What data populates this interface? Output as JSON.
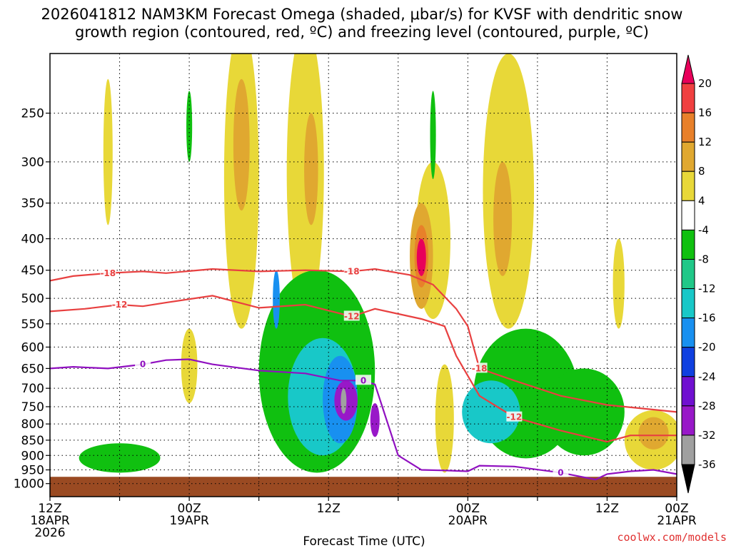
{
  "chart_data": {
    "type": "contour-timeheight",
    "title_line1": "2026041812 NAM3KM Forecast Omega (shaded, μbar/s) for KVSF with dendritic snow",
    "title_line2": "growth region (contoured, red, ºC) and freezing level (contoured, purple, ºC)",
    "xlabel": "Forecast Time (UTC)",
    "x_range_hours": [
      0,
      54
    ],
    "x_ticks": [
      {
        "hour": 0,
        "lines": [
          "12Z",
          "18APR",
          "2026"
        ]
      },
      {
        "hour": 6,
        "lines": []
      },
      {
        "hour": 12,
        "lines": [
          "00Z",
          "19APR"
        ]
      },
      {
        "hour": 18,
        "lines": []
      },
      {
        "hour": 24,
        "lines": [
          "12Z"
        ]
      },
      {
        "hour": 30,
        "lines": []
      },
      {
        "hour": 36,
        "lines": [
          "00Z",
          "20APR"
        ]
      },
      {
        "hour": 42,
        "lines": []
      },
      {
        "hour": 48,
        "lines": [
          "12Z"
        ]
      },
      {
        "hour": 54,
        "lines": [
          "00Z",
          "21APR"
        ]
      }
    ],
    "y_range_hpa": [
      1050,
      200
    ],
    "y_ticks": [
      250,
      300,
      350,
      400,
      450,
      500,
      550,
      600,
      650,
      700,
      750,
      800,
      850,
      900,
      950,
      1000
    ],
    "colorbar_levels": [
      "20",
      "16",
      "12",
      "8",
      "4",
      "-4",
      "-8",
      "-12",
      "-16",
      "-20",
      "-24",
      "-28",
      "-32",
      "-36"
    ],
    "colorbar_colors": [
      "#e8005a",
      "#f04040",
      "#e8802a",
      "#e0a830",
      "#e8d838",
      "#ffffff",
      "#10c010",
      "#20c888",
      "#18c8c8",
      "#1890f0",
      "#1040e0",
      "#7010d0",
      "#9818c8",
      "#a0a0a0",
      "#000000"
    ],
    "omega_regions": [
      {
        "level": 4,
        "hour": 5.0,
        "pressure": [
          220,
          380
        ],
        "width_h": 0.8
      },
      {
        "level": 4,
        "hour": 16.5,
        "pressure": [
          180,
          560
        ],
        "width_h": 3.0
      },
      {
        "level": 8,
        "hour": 16.5,
        "pressure": [
          220,
          360
        ],
        "width_h": 1.4
      },
      {
        "level": 4,
        "hour": 22.0,
        "pressure": [
          180,
          540
        ],
        "width_h": 3.2
      },
      {
        "level": 8,
        "hour": 22.5,
        "pressure": [
          250,
          380
        ],
        "width_h": 1.2
      },
      {
        "level": 4,
        "hour": 33.0,
        "pressure": [
          300,
          540
        ],
        "width_h": 3.0
      },
      {
        "level": 8,
        "hour": 32.0,
        "pressure": [
          350,
          520
        ],
        "width_h": 2.0
      },
      {
        "level": 12,
        "hour": 32.0,
        "pressure": [
          380,
          480
        ],
        "width_h": 1.2
      },
      {
        "level": 20,
        "hour": 32.0,
        "pressure": [
          400,
          460
        ],
        "width_h": 0.8
      },
      {
        "level": 4,
        "hour": 39.5,
        "pressure": [
          200,
          560
        ],
        "width_h": 4.4
      },
      {
        "level": 8,
        "hour": 39.0,
        "pressure": [
          300,
          460
        ],
        "width_h": 1.6
      },
      {
        "level": 4,
        "hour": 49.0,
        "pressure": [
          400,
          560
        ],
        "width_h": 1.0
      },
      {
        "level": 4,
        "hour": 52.0,
        "pressure": [
          760,
          950
        ],
        "width_h": 5.0
      },
      {
        "level": 8,
        "hour": 52.0,
        "pressure": [
          780,
          880
        ],
        "width_h": 2.6
      },
      {
        "level": 4,
        "hour": 12.0,
        "pressure": [
          560,
          740
        ],
        "width_h": 1.4
      },
      {
        "level": 20,
        "hour": 34.0,
        "pressure": [
          660,
          950
        ],
        "width_h": 0.9
      },
      {
        "level": 4,
        "hour": 34.0,
        "pressure": [
          640,
          960
        ],
        "width_h": 1.6
      },
      {
        "level": -4,
        "hour": 12.0,
        "pressure": [
          230,
          300
        ],
        "width_h": 0.5
      },
      {
        "level": -4,
        "hour": 33.0,
        "pressure": [
          230,
          320
        ],
        "width_h": 0.5
      },
      {
        "level": -4,
        "hour": 23.0,
        "pressure": [
          450,
          960
        ],
        "width_h": 10.0
      },
      {
        "level": -4,
        "hour": 41.0,
        "pressure": [
          560,
          910
        ],
        "width_h": 9.0
      },
      {
        "level": -4,
        "hour": 6.0,
        "pressure": [
          860,
          960
        ],
        "width_h": 7.0
      },
      {
        "level": -4,
        "hour": 46.0,
        "pressure": [
          650,
          900
        ],
        "width_h": 7.0
      },
      {
        "level": -12,
        "hour": 23.5,
        "pressure": [
          580,
          900
        ],
        "width_h": 6.0
      },
      {
        "level": -12,
        "hour": 38.0,
        "pressure": [
          680,
          860
        ],
        "width_h": 5.0
      },
      {
        "level": -16,
        "hour": 25.0,
        "pressure": [
          620,
          860
        ],
        "width_h": 3.0
      },
      {
        "level": -16,
        "hour": 19.5,
        "pressure": [
          450,
          560
        ],
        "width_h": 0.6
      },
      {
        "level": -28,
        "hour": 25.5,
        "pressure": [
          680,
          790
        ],
        "width_h": 2.0
      },
      {
        "level": -28,
        "hour": 28.0,
        "pressure": [
          740,
          840
        ],
        "width_h": 0.8
      },
      {
        "level": -32,
        "hour": 25.3,
        "pressure": [
          700,
          770
        ],
        "width_h": 0.4
      }
    ],
    "dgz_contours": [
      {
        "label": "-18",
        "points": [
          [
            0,
            468
          ],
          [
            2,
            460
          ],
          [
            5,
            455
          ],
          [
            8,
            452
          ],
          [
            10,
            455
          ],
          [
            14,
            448
          ],
          [
            18,
            452
          ],
          [
            22,
            450
          ],
          [
            26,
            452
          ],
          [
            28,
            448
          ],
          [
            31,
            458
          ],
          [
            33,
            475
          ],
          [
            35,
            520
          ],
          [
            36,
            555
          ],
          [
            37,
            650
          ],
          [
            40,
            680
          ],
          [
            44,
            720
          ],
          [
            48,
            745
          ],
          [
            54,
            765
          ]
        ]
      },
      {
        "label": "-12",
        "points": [
          [
            0,
            525
          ],
          [
            3,
            520
          ],
          [
            6,
            512
          ],
          [
            8,
            515
          ],
          [
            10,
            508
          ],
          [
            14,
            495
          ],
          [
            18,
            518
          ],
          [
            22,
            512
          ],
          [
            26,
            535
          ],
          [
            28,
            520
          ],
          [
            32,
            540
          ],
          [
            34,
            555
          ],
          [
            35,
            620
          ],
          [
            37,
            720
          ],
          [
            40,
            780
          ],
          [
            44,
            820
          ],
          [
            48,
            855
          ],
          [
            50,
            835
          ],
          [
            54,
            835
          ]
        ]
      }
    ],
    "freezing_contour": {
      "label": "0",
      "points": [
        [
          0,
          650
        ],
        [
          2,
          646
        ],
        [
          5,
          650
        ],
        [
          8,
          640
        ],
        [
          10,
          630
        ],
        [
          12,
          628
        ],
        [
          14,
          640
        ],
        [
          18,
          655
        ],
        [
          22,
          662
        ],
        [
          25,
          680
        ],
        [
          27,
          680
        ],
        [
          28,
          690
        ],
        [
          30,
          900
        ],
        [
          32,
          950
        ],
        [
          34,
          952
        ],
        [
          36,
          955
        ],
        [
          37,
          935
        ],
        [
          40,
          938
        ],
        [
          44,
          960
        ],
        [
          47,
          985
        ],
        [
          48,
          965
        ],
        [
          50,
          955
        ],
        [
          52,
          950
        ],
        [
          54,
          965
        ]
      ]
    },
    "ground_pressure": 975,
    "watermark": "coolwx.com/models"
  }
}
